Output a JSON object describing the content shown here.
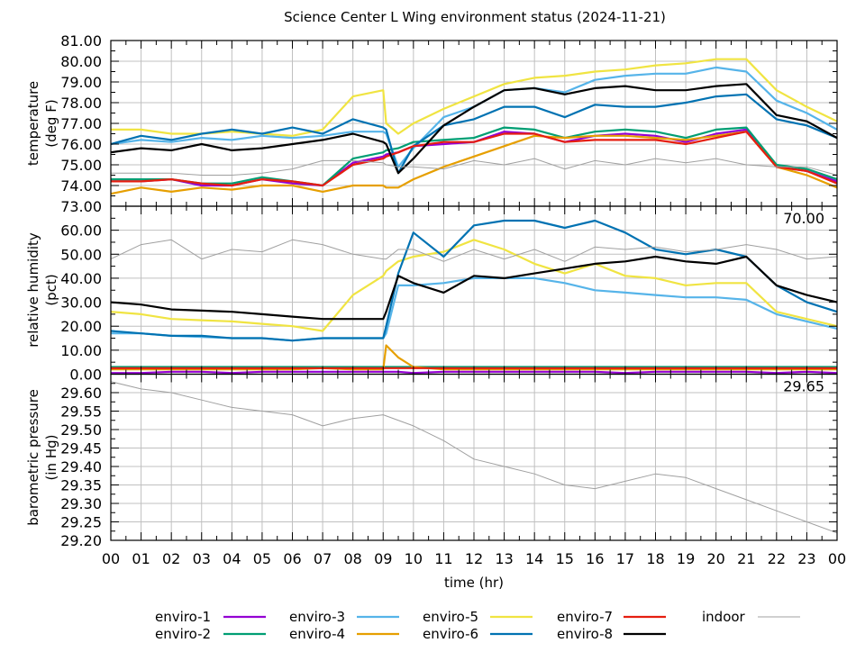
{
  "chart_data": {
    "type": "line",
    "title": "Science Center L Wing environment status (2024-11-21)",
    "xlabel": "time (hr)",
    "xlim": [
      0,
      24
    ],
    "xticks": [
      "00",
      "01",
      "02",
      "03",
      "04",
      "05",
      "06",
      "07",
      "08",
      "09",
      "10",
      "11",
      "12",
      "13",
      "14",
      "15",
      "16",
      "17",
      "18",
      "19",
      "20",
      "21",
      "22",
      "23",
      "00"
    ],
    "x": [
      0,
      1,
      2,
      3,
      4,
      5,
      6,
      7,
      8,
      9,
      9.1,
      9.5,
      10,
      11,
      12,
      13,
      14,
      15,
      16,
      17,
      18,
      19,
      20,
      21,
      22,
      23,
      24
    ],
    "grid": true,
    "legend_position": "bottom",
    "legend": [
      {
        "name": "enviro-1",
        "color": "#9400d3"
      },
      {
        "name": "enviro-2",
        "color": "#009e73"
      },
      {
        "name": "enviro-3",
        "color": "#56b4e9"
      },
      {
        "name": "enviro-4",
        "color": "#e69f00"
      },
      {
        "name": "enviro-5",
        "color": "#f0e442"
      },
      {
        "name": "enviro-6",
        "color": "#0072b2"
      },
      {
        "name": "enviro-7",
        "color": "#e51e10"
      },
      {
        "name": "enviro-8",
        "color": "#000000"
      },
      {
        "name": "indoor",
        "color": "#a0a0a0"
      }
    ],
    "panels": [
      {
        "ylabel": [
          "temperature",
          "(deg F)"
        ],
        "ylim": [
          73,
          81
        ],
        "yticks": [
          "73.00",
          "74.00",
          "75.00",
          "76.00",
          "77.00",
          "78.00",
          "79.00",
          "80.00",
          "81.00"
        ],
        "series": [
          {
            "name": "enviro-1",
            "values": [
              74.2,
              74.2,
              74.3,
              74.0,
              74.0,
              74.3,
              74.1,
              74.0,
              75.1,
              75.4,
              75.5,
              75.6,
              75.9,
              76.0,
              76.1,
              76.6,
              76.5,
              76.1,
              76.4,
              76.5,
              76.4,
              76.1,
              76.5,
              76.7,
              74.9,
              74.7,
              74.2
            ]
          },
          {
            "name": "enviro-2",
            "values": [
              74.3,
              74.3,
              74.3,
              74.1,
              74.1,
              74.4,
              74.2,
              74.0,
              75.3,
              75.6,
              75.7,
              75.8,
              76.1,
              76.2,
              76.3,
              76.8,
              76.7,
              76.3,
              76.6,
              76.7,
              76.6,
              76.3,
              76.7,
              76.8,
              75.0,
              74.8,
              74.3
            ]
          },
          {
            "name": "enviro-3",
            "values": [
              76.0,
              76.2,
              76.1,
              76.3,
              76.2,
              76.4,
              76.3,
              76.4,
              76.6,
              76.6,
              76.5,
              74.9,
              75.8,
              77.3,
              77.8,
              78.6,
              78.7,
              78.5,
              79.1,
              79.3,
              79.4,
              79.4,
              79.7,
              79.5,
              78.1,
              77.5,
              76.7
            ]
          },
          {
            "name": "enviro-4",
            "values": [
              73.6,
              73.9,
              73.7,
              73.9,
              73.8,
              74.0,
              74.0,
              73.7,
              74.0,
              74.0,
              73.9,
              73.9,
              74.3,
              74.9,
              75.4,
              75.9,
              76.4,
              76.3,
              76.4,
              76.4,
              76.3,
              76.2,
              76.4,
              76.6,
              74.9,
              74.5,
              73.9
            ]
          },
          {
            "name": "enviro-5",
            "values": [
              76.7,
              76.7,
              76.5,
              76.5,
              76.6,
              76.5,
              76.4,
              76.7,
              78.3,
              78.6,
              77.0,
              76.5,
              77.0,
              77.7,
              78.3,
              78.9,
              79.2,
              79.3,
              79.5,
              79.6,
              79.8,
              79.9,
              80.1,
              80.1,
              78.6,
              77.8,
              77.1
            ]
          },
          {
            "name": "enviro-6",
            "values": [
              76.0,
              76.4,
              76.2,
              76.5,
              76.7,
              76.5,
              76.8,
              76.5,
              77.2,
              76.8,
              76.7,
              74.6,
              75.9,
              76.9,
              77.2,
              77.8,
              77.8,
              77.3,
              77.9,
              77.8,
              77.8,
              78.0,
              78.3,
              78.4,
              77.2,
              76.9,
              76.3
            ]
          },
          {
            "name": "enviro-7",
            "values": [
              74.2,
              74.2,
              74.3,
              74.1,
              74.0,
              74.3,
              74.2,
              74.0,
              75.0,
              75.3,
              75.4,
              75.6,
              75.9,
              76.1,
              76.1,
              76.5,
              76.5,
              76.1,
              76.2,
              76.2,
              76.2,
              76.0,
              76.3,
              76.6,
              74.9,
              74.7,
              74.1
            ]
          },
          {
            "name": "enviro-8",
            "values": [
              75.6,
              75.8,
              75.7,
              76.0,
              75.7,
              75.8,
              76.0,
              76.2,
              76.5,
              76.1,
              76.0,
              74.6,
              75.3,
              76.9,
              77.8,
              78.6,
              78.7,
              78.4,
              78.7,
              78.8,
              78.6,
              78.6,
              78.8,
              78.9,
              77.4,
              77.1,
              76.3
            ]
          },
          {
            "name": "indoor",
            "values": [
              74.6,
              74.6,
              74.6,
              74.5,
              74.5,
              74.6,
              74.8,
              75.2,
              75.2,
              75.1,
              75.0,
              74.9,
              74.9,
              74.8,
              75.2,
              75.0,
              75.3,
              74.8,
              75.2,
              75.0,
              75.3,
              75.1,
              75.3,
              75.0,
              74.9,
              74.9,
              74.5
            ]
          }
        ]
      },
      {
        "ylabel": [
          "relative humidity",
          "(pct)"
        ],
        "ylim": [
          0,
          70
        ],
        "yticks": [
          "0.00",
          "10.00",
          "20.00",
          "30.00",
          "40.00",
          "50.00",
          "60.00",
          "70.00"
        ],
        "series": [
          {
            "name": "enviro-1",
            "values": [
              0.5,
              0.5,
              1,
              1,
              0.5,
              1,
              1,
              1,
              1,
              1,
              1,
              1,
              0.5,
              1,
              1,
              1,
              1,
              1,
              1,
              0.5,
              1,
              1,
              1,
              1,
              0.5,
              1,
              0.5
            ]
          },
          {
            "name": "enviro-2",
            "values": [
              3,
              3,
              3,
              3,
              3,
              3,
              3,
              3,
              3,
              3,
              3,
              3,
              3,
              3,
              3,
              3,
              3,
              3,
              3,
              3,
              3,
              3,
              3,
              3,
              3,
              3,
              3
            ]
          },
          {
            "name": "enviro-3",
            "values": [
              17,
              17,
              16,
              15.5,
              15,
              15,
              14,
              15,
              15,
              15,
              17,
              37,
              37,
              38,
              40,
              40,
              40,
              38,
              35,
              34,
              33,
              32,
              32,
              31,
              25,
              22,
              19
            ]
          },
          {
            "name": "enviro-4",
            "values": [
              2,
              2,
              2,
              2,
              2,
              2,
              2,
              2.5,
              2,
              2,
              12,
              7,
              3,
              2,
              2,
              2,
              2,
              2,
              2,
              2,
              2,
              2,
              2,
              2,
              2,
              2,
              2
            ]
          },
          {
            "name": "enviro-5",
            "values": [
              26,
              25,
              23,
              22.5,
              22,
              21,
              20,
              18,
              33,
              41,
              43,
              47,
              49,
              51,
              56,
              52,
              46,
              42,
              46,
              41,
              40,
              37,
              38,
              38,
              26,
              23,
              20
            ]
          },
          {
            "name": "enviro-6",
            "values": [
              18,
              17,
              16,
              16,
              15,
              15,
              14,
              15,
              15,
              15,
              20,
              42,
              59,
              49,
              62,
              64,
              64,
              61,
              64,
              59,
              52,
              50,
              52,
              49,
              37,
              30,
              26
            ]
          },
          {
            "name": "enviro-7",
            "values": [
              2.5,
              2.5,
              2.5,
              2.5,
              2.5,
              2.5,
              2.5,
              2.5,
              2.5,
              2.5,
              2.5,
              2.5,
              2.5,
              2.5,
              2.5,
              2.5,
              2.5,
              2.5,
              2.5,
              2.5,
              2.5,
              2.5,
              2.5,
              2.5,
              2.5,
              2.5,
              2.5
            ]
          },
          {
            "name": "enviro-8",
            "values": [
              30,
              29,
              27,
              26.5,
              26,
              25,
              24,
              23,
              23,
              23,
              26,
              41,
              38,
              34,
              41,
              40,
              42,
              44,
              46,
              47,
              49,
              47,
              46,
              49,
              37,
              33,
              30
            ]
          },
          {
            "name": "indoor",
            "values": [
              48,
              54,
              56,
              48,
              52,
              51,
              56,
              54,
              50,
              48,
              48,
              52,
              52,
              47,
              52,
              48,
              52,
              47,
              53,
              52,
              53,
              51,
              52,
              54,
              52,
              48,
              49
            ]
          }
        ]
      },
      {
        "ylabel": [
          "barometric pressure",
          "(in Hg)"
        ],
        "ylim": [
          29.2,
          29.65
        ],
        "yticks": [
          "29.20",
          "29.25",
          "29.30",
          "29.35",
          "29.40",
          "29.45",
          "29.50",
          "29.55",
          "29.60",
          "29.65"
        ],
        "series": [
          {
            "name": "indoor",
            "x": [
              0,
              1,
              2,
              3,
              4,
              5,
              6,
              7,
              8,
              9,
              10,
              11,
              12,
              13,
              14,
              15,
              16,
              17,
              18,
              19,
              20,
              21,
              22,
              23,
              24
            ],
            "values": [
              29.63,
              29.61,
              29.6,
              29.58,
              29.56,
              29.55,
              29.54,
              29.51,
              29.53,
              29.54,
              29.51,
              29.47,
              29.42,
              29.4,
              29.38,
              29.35,
              29.34,
              29.36,
              29.38,
              29.37,
              29.34,
              29.31,
              29.28,
              29.25,
              29.22
            ]
          }
        ]
      }
    ]
  }
}
